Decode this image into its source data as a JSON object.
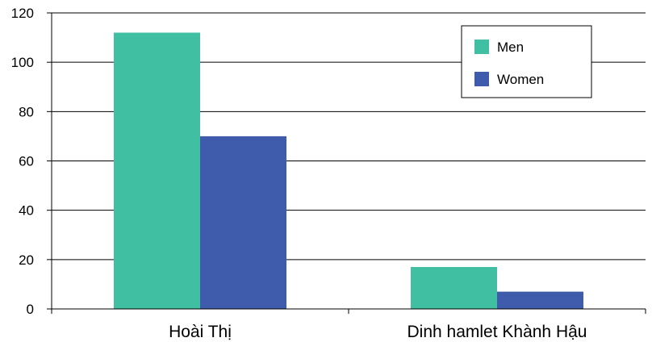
{
  "chart_data": {
    "type": "bar",
    "categories": [
      "Hoài Thị",
      "Dinh hamlet Khành Hậu"
    ],
    "series": [
      {
        "name": "Men",
        "values": [
          112,
          17
        ],
        "color": "#41bfa3"
      },
      {
        "name": "Women",
        "values": [
          70,
          7
        ],
        "color": "#3f5bab"
      }
    ],
    "ylim": [
      0,
      120
    ],
    "yticks": [
      0,
      20,
      40,
      60,
      80,
      100,
      120
    ],
    "grid": true,
    "legend": "top-right",
    "title": "",
    "xlabel": "",
    "ylabel": ""
  }
}
